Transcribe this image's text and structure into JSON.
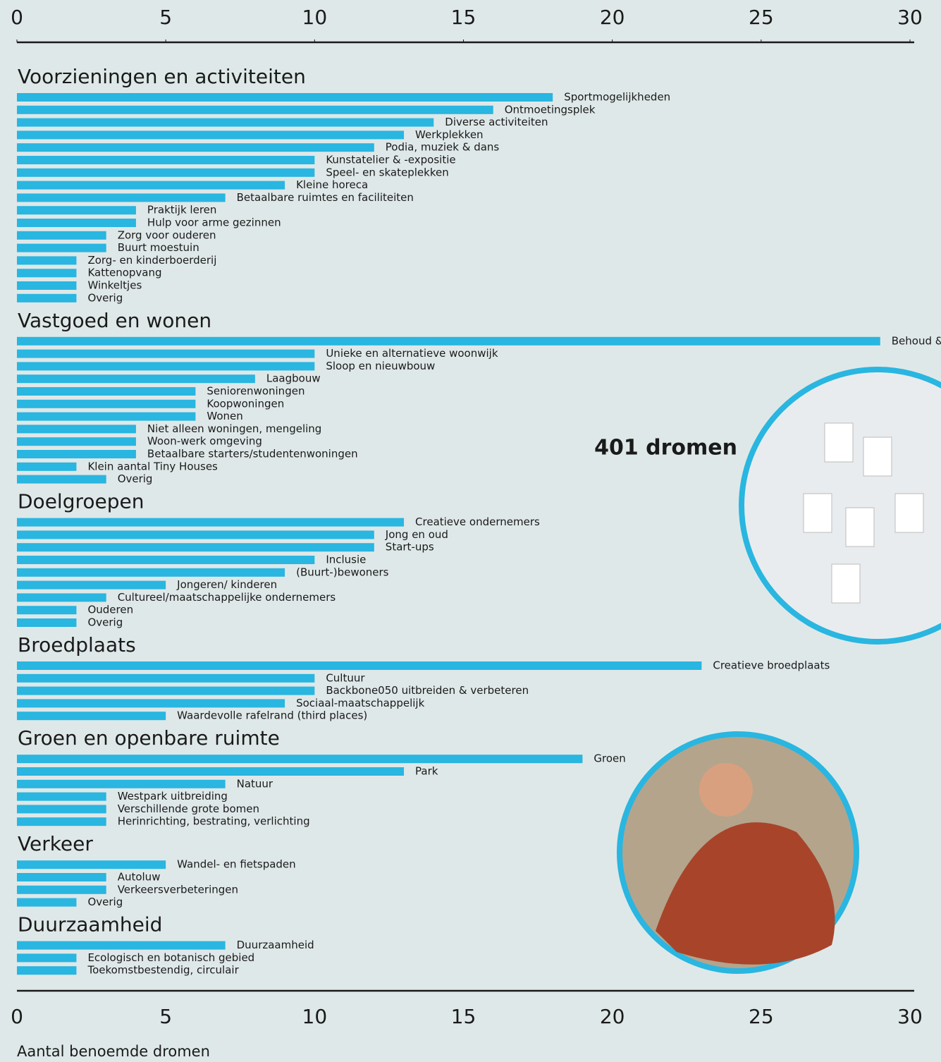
{
  "chart_data": {
    "type": "bar",
    "orientation": "horizontal",
    "color": "#29b6e0",
    "xlim": [
      0,
      30
    ],
    "xticks": [
      0,
      5,
      10,
      15,
      20,
      25,
      30
    ],
    "xlabel": "Aantal benoemde dromen",
    "annotation": "401 dromen",
    "groups": [
      {
        "title": "Voorzieningen en activiteiten",
        "categories": [
          "Sportmogelijkheden",
          "Ontmoetingsplek",
          "Diverse activiteiten",
          "Werkplekken",
          "Podia, muziek & dans",
          "Kunstatelier & -expositie",
          "Speel- en skateplekken",
          "Kleine horeca",
          "Betaalbare ruimtes en faciliteiten",
          "Praktijk leren",
          "Hulp voor arme gezinnen",
          "Zorg voor ouderen",
          "Buurt moestuin",
          "Zorg- en kinderboerderij",
          "Kattenopvang",
          "Winkeltjes",
          "Overig"
        ],
        "values": [
          18,
          16,
          14,
          13,
          12,
          10,
          10,
          9,
          7,
          4,
          4,
          3,
          3,
          2,
          2,
          2,
          2
        ]
      },
      {
        "title": "Vastgoed en wonen",
        "categories": [
          "Behoud &",
          "Unieke en alternatieve woonwijk",
          "Sloop en nieuwbouw",
          "Laagbouw",
          "Seniorenwoningen",
          "Koopwoningen",
          "Wonen",
          "Niet alleen woningen, mengeling",
          "Woon-werk omgeving",
          "Betaalbare starters/studentenwoningen",
          "Klein aantal Tiny Houses",
          "Overig"
        ],
        "values": [
          29,
          10,
          10,
          8,
          6,
          6,
          6,
          4,
          4,
          4,
          2,
          3
        ]
      },
      {
        "title": "Doelgroepen",
        "categories": [
          "Creatieve ondernemers",
          "Jong en oud",
          "Start-ups",
          "Inclusie",
          "(Buurt-)bewoners",
          "Jongeren/ kinderen",
          "Cultureel/maatschappelijke ondernemers",
          "Ouderen",
          "Overig"
        ],
        "values": [
          13,
          12,
          12,
          10,
          9,
          5,
          3,
          2,
          2
        ]
      },
      {
        "title": "Broedplaats",
        "categories": [
          "Creatieve broedplaats",
          "Cultuur",
          "Backbone050 uitbreiden & verbeteren",
          "Sociaal-maatschappelijk",
          "Waardevolle rafelrand (third places)"
        ],
        "values": [
          23,
          10,
          10,
          9,
          5
        ]
      },
      {
        "title": "Groen en openbare ruimte",
        "categories": [
          "Groen",
          "Park",
          "Natuur",
          "Westpark uitbreiding",
          "Verschillende grote bomen",
          "Herinrichting, bestrating, verlichting"
        ],
        "values": [
          19,
          13,
          7,
          3,
          3,
          3
        ]
      },
      {
        "title": "Verkeer",
        "categories": [
          "Wandel- en fietspaden",
          "Autoluw",
          "Verkeersverbeteringen",
          "Overig"
        ],
        "values": [
          5,
          3,
          3,
          2
        ]
      },
      {
        "title": "Duurzaamheid",
        "categories": [
          "Duurzaamheid",
          "Ecologisch en botanisch gebied",
          "Toekomstbestendig, circulair"
        ],
        "values": [
          7,
          2,
          2
        ]
      }
    ]
  }
}
